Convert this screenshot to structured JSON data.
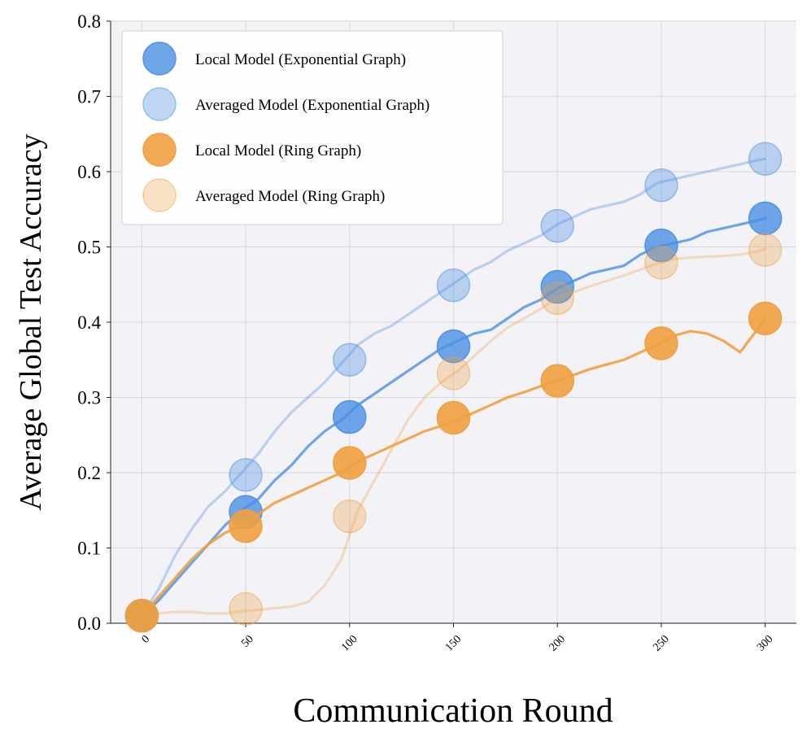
{
  "chart_data": {
    "type": "line",
    "xlabel": "Communication Round",
    "ylabel": "Average Global Test Accuracy",
    "xlim": [
      -15,
      315
    ],
    "ylim": [
      0,
      0.8
    ],
    "xticks": [
      0,
      50,
      100,
      150,
      200,
      250,
      300
    ],
    "xtick_labels": [
      "0",
      "50",
      "100",
      "150",
      "200",
      "250",
      "300"
    ],
    "yticks": [
      0.0,
      0.1,
      0.2,
      0.3,
      0.4,
      0.5,
      0.6,
      0.7,
      0.8
    ],
    "ytick_labels": [
      "0.0",
      "0.1",
      "0.2",
      "0.3",
      "0.4",
      "0.5",
      "0.6",
      "0.7",
      "0.8"
    ],
    "grid": true,
    "legend_position": "top-left",
    "marker_x": [
      0,
      50,
      100,
      150,
      200,
      250,
      300
    ],
    "series": [
      {
        "name": "Local Model (Exponential Graph)",
        "color": "#4a90e2",
        "alpha": 0.8,
        "x": [
          0,
          8,
          16,
          24,
          32,
          40,
          48,
          56,
          64,
          72,
          80,
          88,
          96,
          104,
          112,
          120,
          128,
          136,
          144,
          152,
          160,
          168,
          176,
          184,
          192,
          200,
          208,
          216,
          224,
          232,
          240,
          248,
          256,
          264,
          272,
          280,
          288,
          296,
          300
        ],
        "y": [
          0.01,
          0.03,
          0.055,
          0.08,
          0.105,
          0.13,
          0.15,
          0.165,
          0.19,
          0.21,
          0.235,
          0.255,
          0.27,
          0.29,
          0.305,
          0.32,
          0.335,
          0.35,
          0.365,
          0.375,
          0.385,
          0.39,
          0.405,
          0.42,
          0.43,
          0.445,
          0.455,
          0.465,
          0.47,
          0.475,
          0.49,
          0.5,
          0.505,
          0.51,
          0.52,
          0.525,
          0.53,
          0.535,
          0.538
        ],
        "markers": [
          0.01,
          0.148,
          0.274,
          0.368,
          0.447,
          0.502,
          0.538
        ]
      },
      {
        "name": "Averaged Model (Exponential Graph)",
        "color": "#4a90e2",
        "alpha": 0.35,
        "x": [
          0,
          8,
          16,
          24,
          32,
          40,
          48,
          56,
          64,
          72,
          80,
          88,
          96,
          104,
          112,
          120,
          128,
          136,
          144,
          152,
          160,
          168,
          176,
          184,
          192,
          200,
          208,
          216,
          224,
          232,
          240,
          248,
          256,
          264,
          272,
          280,
          288,
          296,
          300
        ],
        "y": [
          0.01,
          0.045,
          0.09,
          0.125,
          0.155,
          0.175,
          0.2,
          0.225,
          0.255,
          0.28,
          0.3,
          0.32,
          0.345,
          0.37,
          0.385,
          0.395,
          0.41,
          0.425,
          0.44,
          0.455,
          0.47,
          0.48,
          0.495,
          0.505,
          0.515,
          0.53,
          0.54,
          0.55,
          0.555,
          0.56,
          0.57,
          0.585,
          0.59,
          0.595,
          0.6,
          0.605,
          0.61,
          0.615,
          0.617
        ],
        "markers": [
          0.01,
          0.197,
          0.35,
          0.449,
          0.528,
          0.582,
          0.617
        ]
      },
      {
        "name": "Local Model (Ring Graph)",
        "color": "#f0a040",
        "alpha": 0.9,
        "x": [
          0,
          8,
          16,
          24,
          32,
          40,
          48,
          56,
          64,
          72,
          80,
          88,
          96,
          104,
          112,
          120,
          128,
          136,
          144,
          152,
          160,
          168,
          176,
          184,
          192,
          200,
          208,
          216,
          224,
          232,
          240,
          248,
          256,
          264,
          272,
          280,
          288,
          296,
          300
        ],
        "y": [
          0.01,
          0.035,
          0.06,
          0.085,
          0.105,
          0.12,
          0.13,
          0.145,
          0.16,
          0.17,
          0.18,
          0.19,
          0.2,
          0.215,
          0.225,
          0.235,
          0.245,
          0.255,
          0.262,
          0.27,
          0.28,
          0.29,
          0.3,
          0.307,
          0.315,
          0.322,
          0.33,
          0.338,
          0.344,
          0.35,
          0.36,
          0.37,
          0.382,
          0.388,
          0.385,
          0.375,
          0.36,
          0.39,
          0.405
        ],
        "markers": [
          0.01,
          0.129,
          0.213,
          0.273,
          0.322,
          0.372,
          0.405
        ]
      },
      {
        "name": "Averaged Model (Ring Graph)",
        "color": "#f0a040",
        "alpha": 0.3,
        "x": [
          0,
          8,
          16,
          24,
          32,
          40,
          48,
          56,
          64,
          72,
          80,
          88,
          96,
          104,
          112,
          120,
          128,
          136,
          144,
          152,
          160,
          168,
          176,
          184,
          192,
          200,
          208,
          216,
          224,
          232,
          240,
          248,
          256,
          264,
          272,
          280,
          288,
          296,
          300
        ],
        "y": [
          0.01,
          0.013,
          0.015,
          0.015,
          0.013,
          0.013,
          0.016,
          0.018,
          0.02,
          0.022,
          0.028,
          0.05,
          0.085,
          0.15,
          0.19,
          0.23,
          0.27,
          0.3,
          0.32,
          0.335,
          0.355,
          0.375,
          0.393,
          0.405,
          0.418,
          0.432,
          0.44,
          0.448,
          0.455,
          0.462,
          0.47,
          0.478,
          0.484,
          0.486,
          0.487,
          0.488,
          0.49,
          0.494,
          0.497
        ],
        "markers": [
          0.01,
          0.019,
          0.142,
          0.332,
          0.432,
          0.479,
          0.496
        ]
      }
    ]
  }
}
